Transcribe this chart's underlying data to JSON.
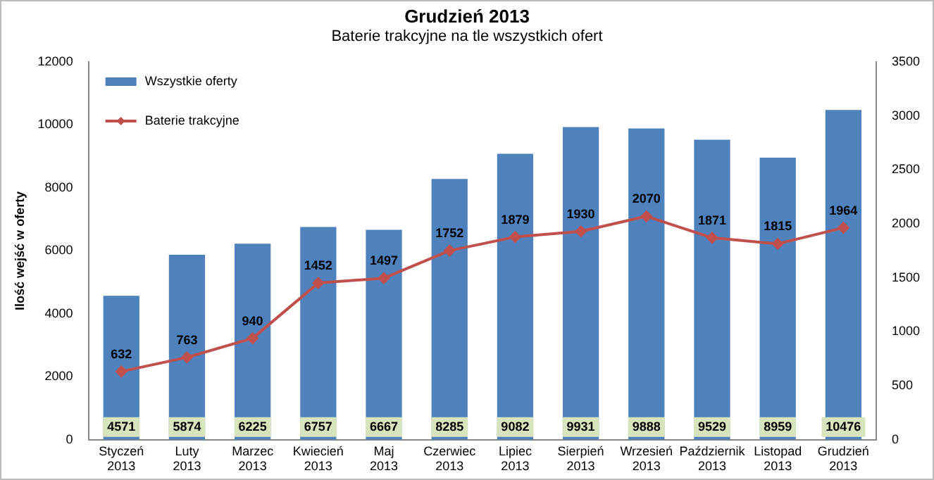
{
  "chart_data": {
    "type": "bar",
    "title": "Grudzień 2013",
    "subtitle": "Baterie trakcyjne na tle wszystkich ofert",
    "ylabel": "Ilość wejść w oferty",
    "categories": [
      "Styczeń 2013",
      "Luty 2013",
      "Marzec 2013",
      "Kwiecień 2013",
      "Maj 2013",
      "Czerwiec 2013",
      "Lipiec 2013",
      "Sierpień 2013",
      "Wrzesień 2013",
      "Październik 2013",
      "Listopad 2013",
      "Grudzień 2013"
    ],
    "series": [
      {
        "name": "Wszystkie oferty",
        "color": "#4f81bd",
        "values": [
          4571,
          5874,
          6225,
          6757,
          6667,
          8285,
          9082,
          9931,
          9888,
          9529,
          8959,
          10476
        ]
      },
      {
        "name": "Baterie trakcyjne",
        "type": "line",
        "axis": "y2",
        "color": "#c0504d",
        "values": [
          632,
          763,
          940,
          1452,
          1497,
          1752,
          1879,
          1930,
          2070,
          1871,
          1815,
          1964
        ]
      }
    ],
    "ylim": [
      0,
      12000
    ],
    "yticks": [
      0,
      2000,
      4000,
      6000,
      8000,
      10000,
      12000
    ],
    "y2lim": [
      0,
      3500
    ],
    "y2ticks": [
      0,
      500,
      1000,
      1500,
      2000,
      2500,
      3000,
      3500
    ],
    "data_labels": true,
    "legend": "top left",
    "grid": false,
    "marker": "diamond",
    "line_style": "solid"
  }
}
